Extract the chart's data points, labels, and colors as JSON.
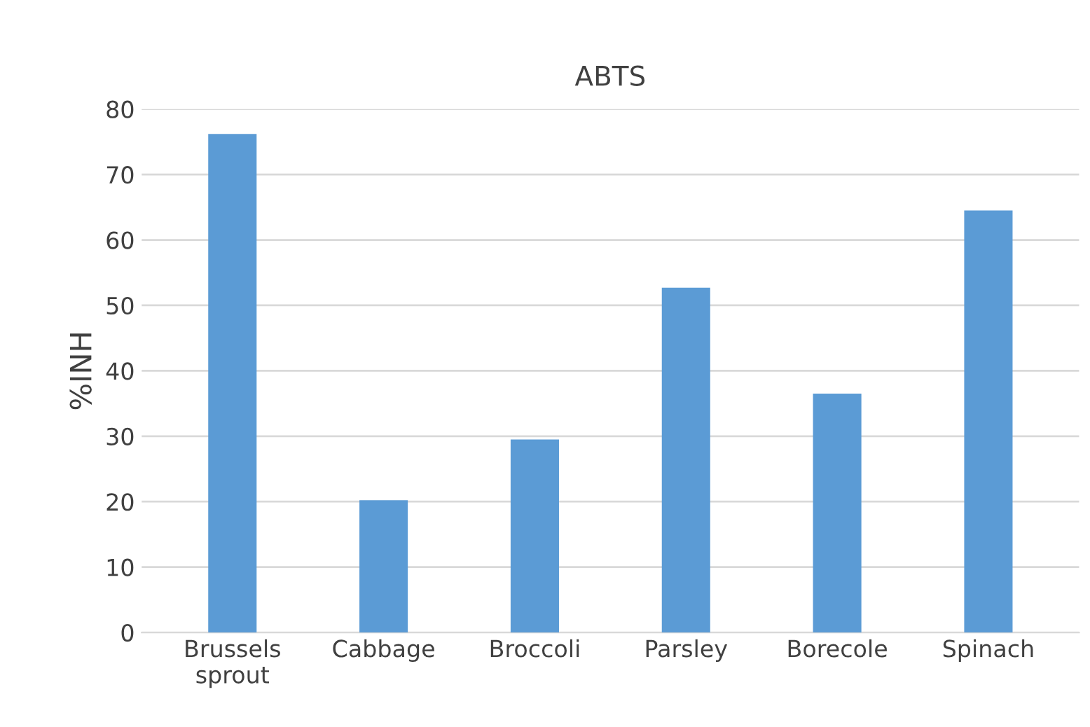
{
  "chart_data": {
    "type": "bar",
    "title": "ABTS",
    "ylabel": "%INH",
    "categories": [
      "Brussels\nsprout",
      "Cabbage",
      "Broccoli",
      "Parsley",
      "Borecole",
      "Spinach"
    ],
    "values": [
      76.2,
      20.2,
      29.5,
      52.7,
      36.5,
      64.5
    ],
    "color": "#5b9bd5",
    "ylim": [
      0,
      80
    ],
    "yticks": [
      0,
      10,
      20,
      30,
      40,
      50,
      60,
      70,
      80
    ],
    "grid": "y"
  }
}
